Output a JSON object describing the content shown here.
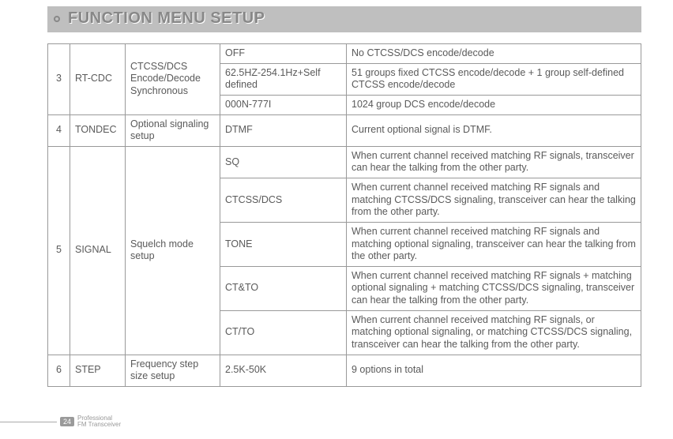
{
  "header": {
    "title": "FUNCTION MENU SETUP"
  },
  "rows": {
    "r3": {
      "num": "3",
      "name": "RT-CDC",
      "desc": "CTCSS/DCS Encode/Decode Synchronous",
      "opts": {
        "a": {
          "opt": "OFF",
          "detail": "No CTCSS/DCS encode/decode"
        },
        "b": {
          "opt": "62.5HZ-254.1Hz+Self defined",
          "detail": "51 groups fixed CTCSS encode/decode + 1 group self-defined CTCSS encode/decode"
        },
        "c": {
          "opt": "000N-777I",
          "detail": "1024 group DCS encode/decode"
        }
      }
    },
    "r4": {
      "num": "4",
      "name": "TONDEC",
      "desc": "Optional signaling setup",
      "opt": "DTMF",
      "detail": "Current optional signal is DTMF."
    },
    "r5": {
      "num": "5",
      "name": "SIGNAL",
      "desc": "Squelch mode setup",
      "opts": {
        "a": {
          "opt": "SQ",
          "detail": "When current channel received matching RF signals, transceiver can hear the talking from the other party."
        },
        "b": {
          "opt": "CTCSS/DCS",
          "detail": "When current channel received matching RF signals and matching CTCSS/DCS signaling, transceiver can hear the talking from the other party."
        },
        "c": {
          "opt": "TONE",
          "detail": "When current channel received matching RF signals and matching optional signaling, transceiver can hear the talking from the other party."
        },
        "d": {
          "opt": "CT&TO",
          "detail": "When current channel received matching RF signals + matching optional signaling + matching CTCSS/DCS signaling, transceiver can hear the talking from the other party."
        },
        "e": {
          "opt": "CT/TO",
          "detail": "When current channel received matching RF signals, or matching optional signaling, or matching CTCSS/DCS signaling, transceiver can hear the talking from the other party."
        }
      }
    },
    "r6": {
      "num": "6",
      "name": "STEP",
      "desc": "Frequency step size setup",
      "opt": "2.5K-50K",
      "detail": "9 options in total"
    }
  },
  "footer": {
    "page": "24",
    "line1": "Professional",
    "line2": "FM Transceiver"
  }
}
